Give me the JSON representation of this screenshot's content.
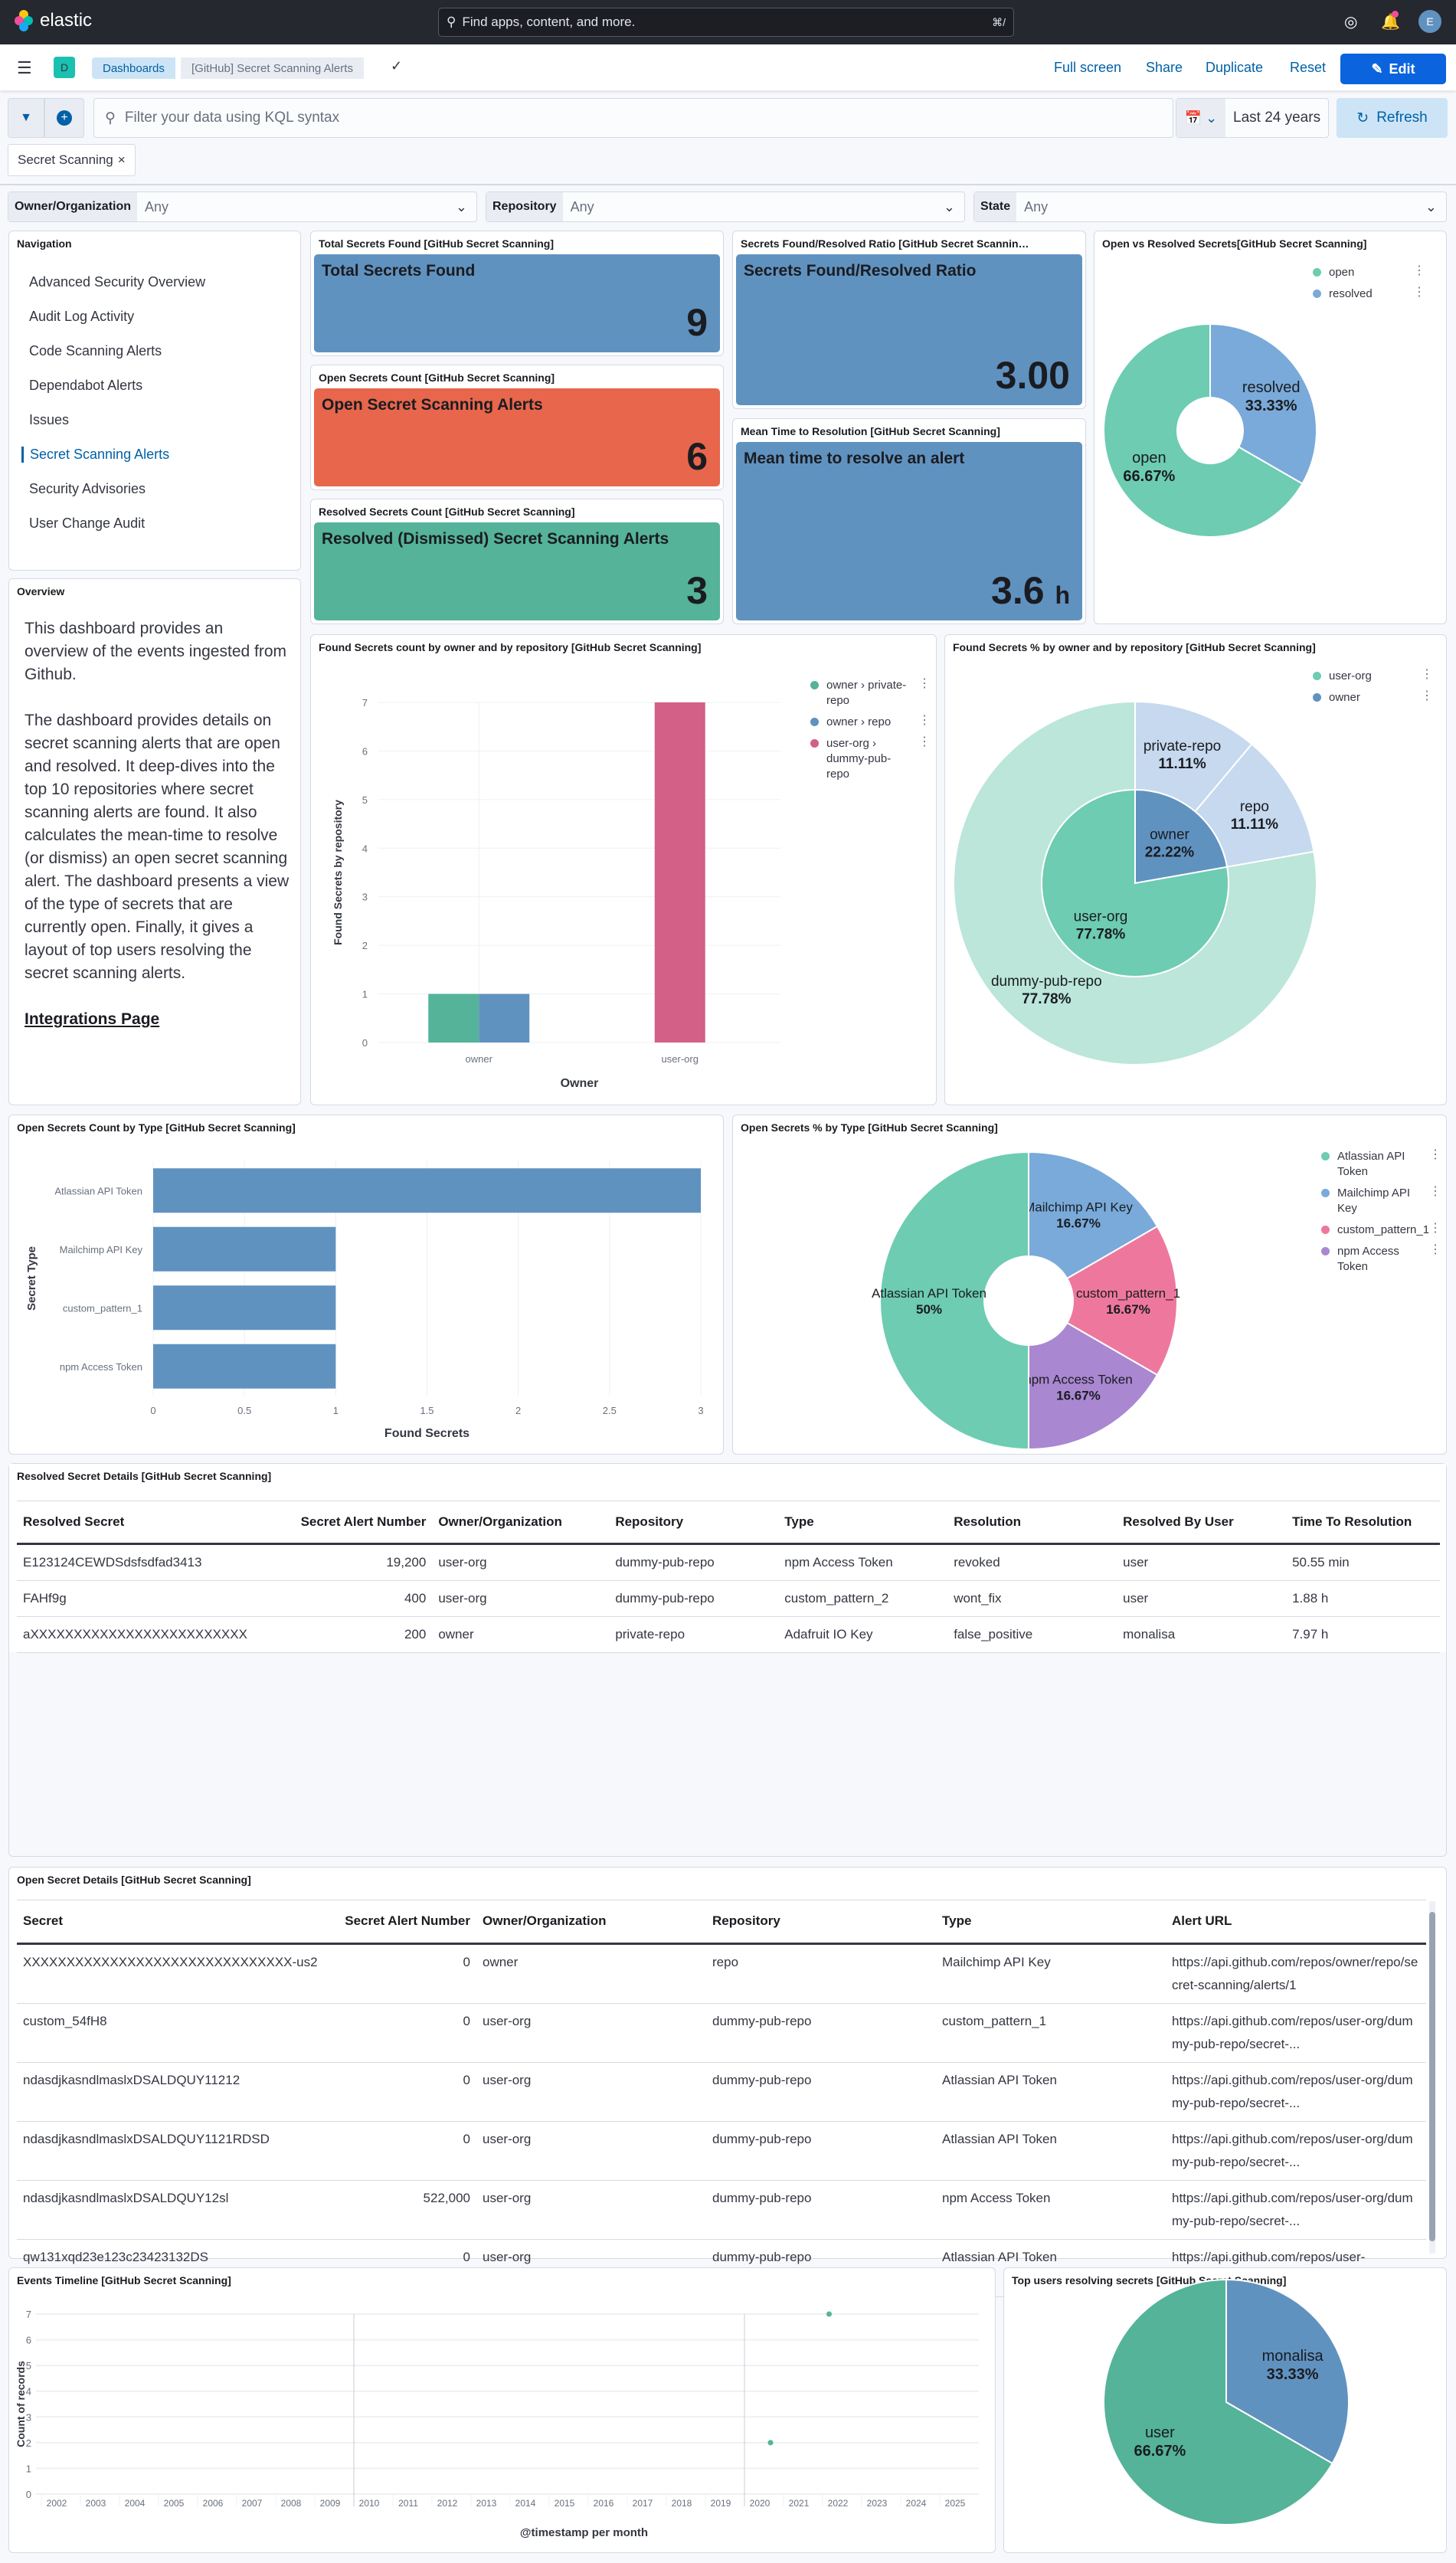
{
  "topbar": {
    "logo_text": "elastic",
    "search_placeholder": "Find apps, content, and more.",
    "search_shortcut": "⌘/",
    "avatar_initial": "E"
  },
  "navbar": {
    "space_initial": "D",
    "breadcrumbs": [
      "Dashboards",
      "[GitHub] Secret Scanning Alerts"
    ],
    "actions": [
      "Full screen",
      "Share",
      "Duplicate",
      "Reset"
    ],
    "edit_label": "Edit"
  },
  "query": {
    "placeholder": "Filter your data using KQL syntax",
    "time_range": "Last 24 years",
    "refresh_label": "Refresh",
    "filter_pill": "Secret Scanning"
  },
  "controls": [
    {
      "label": "Owner/Organization",
      "value": "Any"
    },
    {
      "label": "Repository",
      "value": "Any"
    },
    {
      "label": "State",
      "value": "Any"
    }
  ],
  "navigation": {
    "title": "Navigation",
    "items": [
      "Advanced Security Overview",
      "Audit Log Activity",
      "Code Scanning Alerts",
      "Dependabot Alerts",
      "Issues",
      "Secret Scanning Alerts",
      "Security Advisories",
      "User Change Audit"
    ],
    "active": "Secret Scanning Alerts"
  },
  "overview": {
    "title": "Overview",
    "paragraphs": [
      "This dashboard provides an overview of the events ingested from Github.",
      "The dashboard provides details on secret scanning alerts that are open and resolved. It deep-dives into the top 10 repositories where secret scanning alerts are found. It also calculates the mean-time to resolve (or dismiss) an open secret scanning alert. The dashboard presents a view of the type of secrets that are currently open. Finally, it gives a layout of top users resolving the secret scanning alerts."
    ],
    "link": "Integrations Page"
  },
  "metrics": {
    "total": {
      "panel_title": "Total Secrets Found [GitHub Secret Scanning]",
      "label": "Total Secrets Found",
      "value": "9",
      "color": "#6092c0"
    },
    "open": {
      "panel_title": "Open Secrets Count [GitHub Secret Scanning]",
      "label": "Open Secret Scanning Alerts",
      "value": "6",
      "color": "#e7664c"
    },
    "resolved": {
      "panel_title": "Resolved Secrets Count [GitHub Secret Scanning]",
      "label": "Resolved (Dismissed) Secret Scanning Alerts",
      "value": "3",
      "color": "#54b399"
    },
    "ratio": {
      "panel_title": "Secrets Found/Resolved Ratio [GitHub Secret Scannin…",
      "label": "Secrets Found/Resolved Ratio",
      "value": "3.00",
      "color": "#6092c0"
    },
    "mttr": {
      "panel_title": "Mean Time to Resolution [GitHub Secret Scanning]",
      "label": "Mean time to resolve an alert",
      "value": "3.6",
      "unit": "h",
      "color": "#6092c0"
    }
  },
  "chart_data": [
    {
      "id": "open_vs_resolved",
      "type": "pie",
      "title": "Open vs Resolved Secrets[GitHub Secret Scanning]",
      "donut": true,
      "legend_position": "top-right",
      "slices": [
        {
          "label": "resolved",
          "value": 33.33,
          "pct": "33.33%",
          "color": "#79aad9"
        },
        {
          "label": "open",
          "value": 66.67,
          "pct": "66.67%",
          "color": "#6dccb1"
        }
      ],
      "legend": [
        {
          "label": "open",
          "color": "#6dccb1"
        },
        {
          "label": "resolved",
          "color": "#79aad9"
        }
      ]
    },
    {
      "id": "found_by_owner_repo",
      "type": "bar",
      "title": "Found Secrets count by owner and by repository [GitHub Secret Scanning]",
      "xlabel": "Owner",
      "ylabel": "Found Secrets by repository",
      "ylim": [
        0,
        7
      ],
      "yticks": [
        0,
        1,
        2,
        3,
        4,
        5,
        6,
        7
      ],
      "categories": [
        "owner",
        "user-org"
      ],
      "legend_position": "right",
      "series": [
        {
          "name": "owner › private-repo",
          "color": "#54b399",
          "values": [
            1,
            0
          ]
        },
        {
          "name": "owner › repo",
          "color": "#6092c0",
          "values": [
            1,
            0
          ]
        },
        {
          "name": "user-org › dummy-pub-repo",
          "color": "#d36086",
          "values": [
            0,
            7
          ]
        }
      ]
    },
    {
      "id": "found_pct_owner_repo",
      "type": "pie",
      "title": "Found Secrets % by owner and by repository [GitHub Secret Scanning]",
      "legend_position": "top-right",
      "inner": [
        {
          "label": "owner",
          "value": 22.22,
          "pct": "22.22%",
          "color": "#6092c0"
        },
        {
          "label": "user-org",
          "value": 77.78,
          "pct": "77.78%",
          "color": "#6dccb1"
        }
      ],
      "outer": [
        {
          "label": "private-repo",
          "value": 11.11,
          "pct": "11.11%",
          "color": "#c6d9ee"
        },
        {
          "label": "repo",
          "value": 11.11,
          "pct": "11.11%",
          "color": "#c6d9ee"
        },
        {
          "label": "dummy-pub-repo",
          "value": 77.78,
          "pct": "77.78%",
          "color": "#bbe6d9"
        }
      ],
      "legend": [
        {
          "label": "user-org",
          "color": "#6dccb1"
        },
        {
          "label": "owner",
          "color": "#6092c0"
        }
      ]
    },
    {
      "id": "open_count_by_type",
      "type": "bar",
      "orientation": "horizontal",
      "title": "Open Secrets Count by Type [GitHub Secret Scanning]",
      "xlabel": "Found Secrets",
      "ylabel": "Secret Type",
      "xlim": [
        0,
        3
      ],
      "xticks": [
        "0",
        "0.5",
        "1",
        "1.5",
        "2",
        "2.5",
        "3"
      ],
      "categories": [
        "Atlassian API Token",
        "Mailchimp API Key",
        "custom_pattern_1",
        "npm Access Token"
      ],
      "values": [
        3,
        1,
        1,
        1
      ],
      "color": "#6092c0"
    },
    {
      "id": "open_pct_by_type",
      "type": "pie",
      "title": "Open Secrets % by Type [GitHub Secret Scanning]",
      "donut": true,
      "legend_position": "top-right",
      "slices": [
        {
          "label": "Mailchimp API Key",
          "value": 16.67,
          "pct": "16.67%",
          "color": "#79aad9"
        },
        {
          "label": "custom_pattern_1",
          "value": 16.67,
          "pct": "16.67%",
          "color": "#ee789d"
        },
        {
          "label": "npm Access Token",
          "value": 16.67,
          "pct": "16.67%",
          "color": "#a987d1"
        },
        {
          "label": "Atlassian API Token",
          "value": 50,
          "pct": "50%",
          "color": "#6dccb1"
        }
      ],
      "legend": [
        {
          "label": "Atlassian API Token",
          "color": "#6dccb1"
        },
        {
          "label": "Mailchimp API Key",
          "color": "#79aad9"
        },
        {
          "label": "custom_pattern_1",
          "color": "#ee789d"
        },
        {
          "label": "npm Access Token",
          "color": "#a987d1"
        }
      ]
    },
    {
      "id": "events_timeline",
      "type": "scatter",
      "title": "Events Timeline [GitHub Secret Scanning]",
      "xlabel": "@timestamp per month",
      "ylabel": "Count of records",
      "ylim": [
        0,
        7
      ],
      "yticks": [
        0,
        1,
        2,
        3,
        4,
        5,
        6,
        7
      ],
      "xticks": [
        "2002",
        "2003",
        "2004",
        "2005",
        "2006",
        "2007",
        "2008",
        "2009",
        "2010",
        "2011",
        "2012",
        "2013",
        "2014",
        "2015",
        "2016",
        "2017",
        "2018",
        "2019",
        "2020",
        "2021",
        "2022",
        "2023",
        "2024",
        "2025"
      ],
      "points": [
        {
          "x": "2020-09",
          "y": 2
        },
        {
          "x": "2022-03",
          "y": 7
        }
      ],
      "color": "#54b399"
    },
    {
      "id": "top_users",
      "type": "pie",
      "title": "Top users resolving secrets [GitHub Secret Scanning]",
      "slices": [
        {
          "label": "monalisa",
          "value": 33.33,
          "pct": "33.33%",
          "color": "#6092c0"
        },
        {
          "label": "user",
          "value": 66.67,
          "pct": "66.67%",
          "color": "#54b399"
        }
      ]
    }
  ],
  "resolved_table": {
    "title": "Resolved Secret Details [GitHub Secret Scanning]",
    "columns": [
      "Resolved Secret",
      "Secret Alert Number",
      "Owner/Organization",
      "Repository",
      "Type",
      "Resolution",
      "Resolved By User",
      "Time To Resolution"
    ],
    "rows": [
      [
        "E123124CEWDSdsfsdfad3413",
        "19,200",
        "user-org",
        "dummy-pub-repo",
        "npm Access Token",
        "revoked",
        "user",
        "50.55 min"
      ],
      [
        "FAHf9g",
        "400",
        "user-org",
        "dummy-pub-repo",
        "custom_pattern_2",
        "wont_fix",
        "user",
        "1.88 h"
      ],
      [
        "aXXXXXXXXXXXXXXXXXXXXXXXXX",
        "200",
        "owner",
        "private-repo",
        "Adafruit IO Key",
        "false_positive",
        "monalisa",
        "7.97 h"
      ]
    ]
  },
  "open_table": {
    "title": "Open Secret Details [GitHub Secret Scanning]",
    "columns": [
      "Secret",
      "Secret Alert Number",
      "Owner/Organization",
      "Repository",
      "Type",
      "Alert URL"
    ],
    "rows": [
      [
        "XXXXXXXXXXXXXXXXXXXXXXXXXXXXXXX-us2",
        "0",
        "owner",
        "repo",
        "Mailchimp API Key",
        "https://api.github.com/repos/owner/repo/secret-scanning/alerts/1"
      ],
      [
        "custom_54fH8",
        "0",
        "user-org",
        "dummy-pub-repo",
        "custom_pattern_1",
        "https://api.github.com/repos/user-org/dummy-pub-repo/secret-..."
      ],
      [
        "ndasdjkasndlmaslxDSALDQUY11212",
        "0",
        "user-org",
        "dummy-pub-repo",
        "Atlassian API Token",
        "https://api.github.com/repos/user-org/dummy-pub-repo/secret-..."
      ],
      [
        "ndasdjkasndlmaslxDSALDQUY1121RDSD",
        "0",
        "user-org",
        "dummy-pub-repo",
        "Atlassian API Token",
        "https://api.github.com/repos/user-org/dummy-pub-repo/secret-..."
      ],
      [
        "ndasdjkasndlmaslxDSALDQUY12sl",
        "522,000",
        "user-org",
        "dummy-pub-repo",
        "npm Access Token",
        "https://api.github.com/repos/user-org/dummy-pub-repo/secret-..."
      ],
      [
        "qw131xqd23e123c23423132DS",
        "0",
        "user-org",
        "dummy-pub-repo",
        "Atlassian API Token",
        "https://api.github.com/repos/user-"
      ]
    ]
  }
}
